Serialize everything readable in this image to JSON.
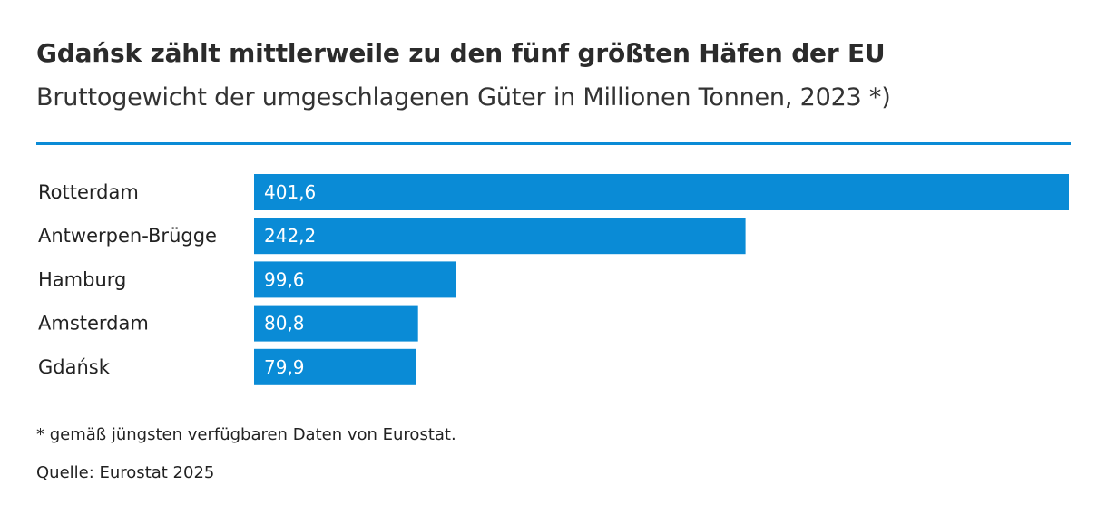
{
  "colors": {
    "bar": "#0a8bd6",
    "rule": "#0a8bd6"
  },
  "chart_data": {
    "type": "bar",
    "orientation": "horizontal",
    "title": "Gdańsk zählt mittlerweile zu den fünf größten Häfen der EU",
    "subtitle": "Bruttogewicht der umgeschlagenen Güter in Millionen Tonnen, 2023 *)",
    "categories": [
      "Rotterdam",
      "Antwerpen-Brügge",
      "Hamburg",
      "Amsterdam",
      "Gdańsk"
    ],
    "values": [
      401.6,
      242.2,
      99.6,
      80.8,
      79.9
    ],
    "value_labels": [
      "401,6",
      "242,2",
      "99,6",
      "80,8",
      "79,9"
    ],
    "xlim": [
      0,
      401.6
    ],
    "grid": false,
    "legend": "none",
    "xlabel": "",
    "ylabel": ""
  },
  "footnote": "* gemäß jüngsten verfügbaren Daten von Eurostat.",
  "source": "Quelle: Eurostat 2025"
}
